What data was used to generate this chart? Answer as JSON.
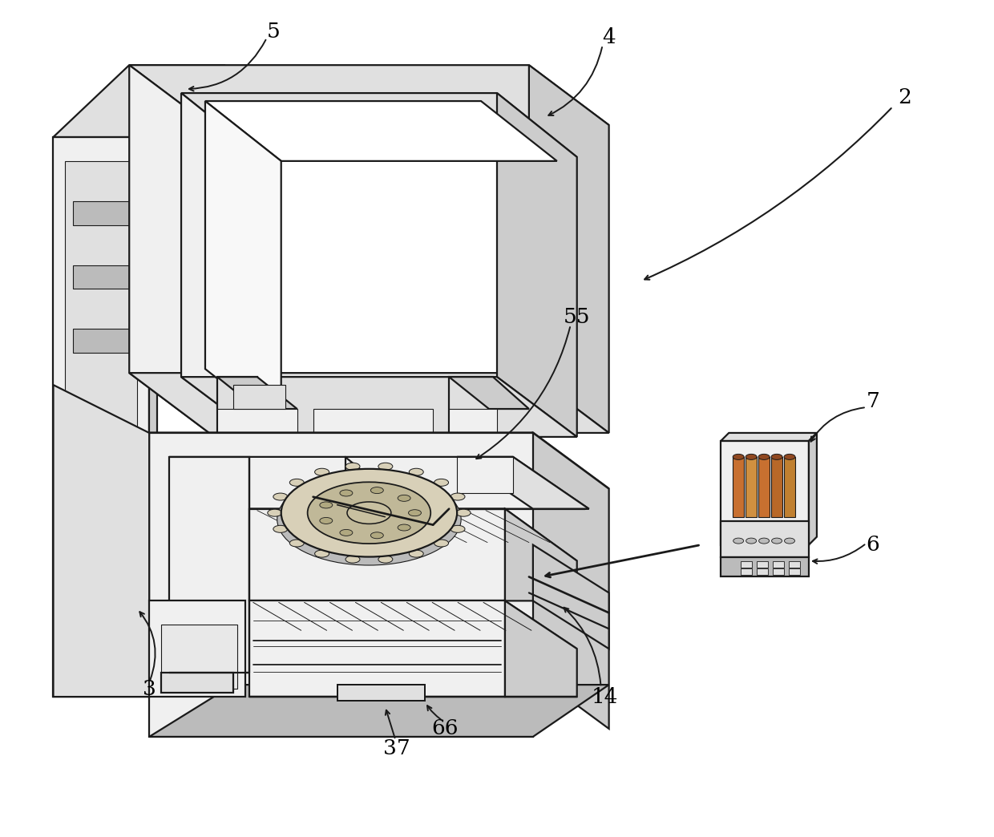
{
  "background_color": "#ffffff",
  "lc": "#1a1a1a",
  "lw": 1.6,
  "lw_thin": 0.8,
  "lw_thick": 2.2,
  "fig_width": 12.4,
  "fig_height": 10.44,
  "dpi": 100,
  "label_fontsize": 19,
  "shade_light": "#f0f0f0",
  "shade_mid": "#e0e0e0",
  "shade_dark": "#cccccc",
  "shade_vdark": "#bbbbbb",
  "white": "#ffffff",
  "rotor_fill": "#d8d0b8",
  "rotor_dark": "#c0b898"
}
